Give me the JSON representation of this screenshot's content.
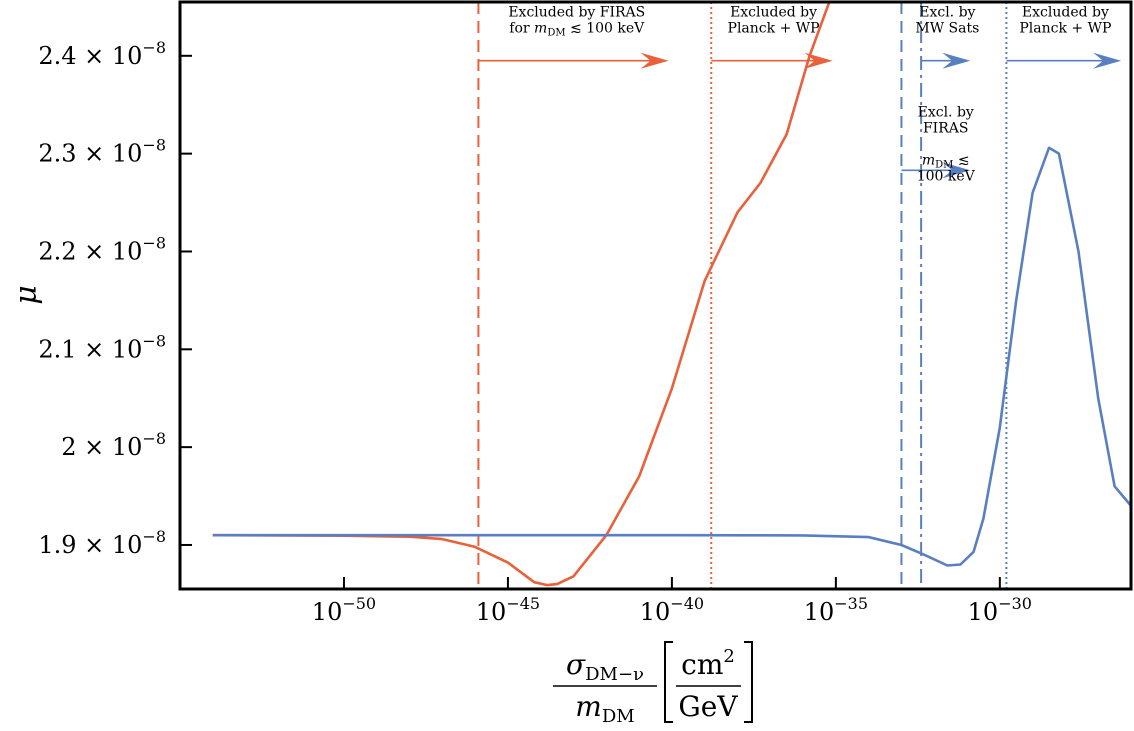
{
  "chart_data": {
    "type": "line",
    "x_scale": "log",
    "xlim_exponent": [
      -55,
      -26
    ],
    "ylim": [
      1.855e-08,
      2.455e-08
    ],
    "grid": false,
    "ylabel": "μ",
    "xlabel": {
      "numerator": "σ",
      "numerator_sub": "DM−ν",
      "denominator": "m",
      "denominator_sub": "DM",
      "unit_numerator": "cm",
      "unit_numerator_sup": "2",
      "unit_denominator": "GeV"
    },
    "x_ticks": [
      {
        "exponent": -50,
        "base": "10",
        "sup": "−50"
      },
      {
        "exponent": -45,
        "base": "10",
        "sup": "−45"
      },
      {
        "exponent": -40,
        "base": "10",
        "sup": "−40"
      },
      {
        "exponent": -35,
        "base": "10",
        "sup": "−35"
      },
      {
        "exponent": -30,
        "base": "10",
        "sup": "−30"
      }
    ],
    "y_ticks": [
      {
        "value": 1.9e-08,
        "mant": "1.9 × 10",
        "sup": "−8"
      },
      {
        "value": 2e-08,
        "mant": "2 × 10",
        "sup": "−8"
      },
      {
        "value": 2.1e-08,
        "mant": "2.1 × 10",
        "sup": "−8"
      },
      {
        "value": 2.2e-08,
        "mant": "2.2 × 10",
        "sup": "−8"
      },
      {
        "value": 2.3e-08,
        "mant": "2.3 × 10",
        "sup": "−8"
      },
      {
        "value": 2.4e-08,
        "mant": "2.4 × 10",
        "sup": "−8"
      }
    ],
    "series": [
      {
        "color": "#e8613a",
        "points": [
          [
            -54,
            1.91e-08
          ],
          [
            -52,
            1.9098e-08
          ],
          [
            -50,
            1.9095e-08
          ],
          [
            -48,
            1.9085e-08
          ],
          [
            -47,
            1.906e-08
          ],
          [
            -46,
            1.898e-08
          ],
          [
            -45,
            1.882e-08
          ],
          [
            -44.2,
            1.862e-08
          ],
          [
            -43.8,
            1.859e-08
          ],
          [
            -43.5,
            1.86e-08
          ],
          [
            -43,
            1.868e-08
          ],
          [
            -42,
            1.91e-08
          ],
          [
            -41,
            1.97e-08
          ],
          [
            -40,
            2.06e-08
          ],
          [
            -39,
            2.17e-08
          ],
          [
            -38,
            2.24e-08
          ],
          [
            -37.3,
            2.27e-08
          ],
          [
            -36.5,
            2.32e-08
          ],
          [
            -35.8,
            2.4e-08
          ],
          [
            -35.2,
            2.455e-08
          ]
        ]
      },
      {
        "color": "#5a7fc0",
        "points": [
          [
            -54,
            1.91e-08
          ],
          [
            -50,
            1.91e-08
          ],
          [
            -45,
            1.91e-08
          ],
          [
            -40,
            1.91e-08
          ],
          [
            -36,
            1.9098e-08
          ],
          [
            -34,
            1.908e-08
          ],
          [
            -33,
            1.9e-08
          ],
          [
            -32.3,
            1.89e-08
          ],
          [
            -31.6,
            1.879e-08
          ],
          [
            -31.2,
            1.88e-08
          ],
          [
            -30.8,
            1.893e-08
          ],
          [
            -30.5,
            1.927e-08
          ],
          [
            -30,
            2.02e-08
          ],
          [
            -29.5,
            2.15e-08
          ],
          [
            -29,
            2.26e-08
          ],
          [
            -28.5,
            2.306e-08
          ],
          [
            -28.2,
            2.3e-08
          ],
          [
            -27.6,
            2.2e-08
          ],
          [
            -27,
            2.05e-08
          ],
          [
            -26.5,
            1.96e-08
          ],
          [
            -26,
            1.94e-08
          ]
        ]
      }
    ],
    "vlines": [
      {
        "exponent": -45.9,
        "color": "#e8613a",
        "style": "dashed"
      },
      {
        "exponent": -38.8,
        "color": "#e8613a",
        "style": "dotted"
      },
      {
        "exponent": -33,
        "color": "#5a7fc0",
        "style": "dashed"
      },
      {
        "exponent": -32.4,
        "color": "#5a7fc0",
        "style": "dashdot"
      },
      {
        "exponent": -29.8,
        "color": "#5a7fc0",
        "style": "dotted"
      }
    ],
    "annotations": [
      {
        "lines": [
          "Excluded by FIRAS",
          "for m_DM ≲ 100 keV"
        ],
        "color": "#e8613a",
        "arrow_from": -45.9,
        "arrow_to": -40.1,
        "arrow_y": 2.395e-08,
        "text_x": -42.9,
        "text_y": 2.44e-08
      },
      {
        "lines": [
          "Excluded by",
          "Planck + WP"
        ],
        "color": "#e8613a",
        "arrow_from": -38.8,
        "arrow_to": -35.1,
        "arrow_y": 2.395e-08,
        "text_x": -36.9,
        "text_y": 2.44e-08
      },
      {
        "lines": [
          "Excl. by",
          "MW Sats"
        ],
        "color": "#5a7fc0",
        "arrow_from": -32.4,
        "arrow_to": -30.9,
        "arrow_y": 2.395e-08,
        "text_x": -31.6,
        "text_y": 2.44e-08
      },
      {
        "lines": [
          "Excluded by",
          "Planck + WP"
        ],
        "color": "#5a7fc0",
        "arrow_from": -29.8,
        "arrow_to": -26.3,
        "arrow_y": 2.395e-08,
        "text_x": -28.0,
        "text_y": 2.44e-08
      },
      {
        "lines": [
          "Excl. by",
          "FIRAS",
          "",
          "m_DM ≲",
          "100 keV"
        ],
        "color": "#5a7fc0",
        "arrow_from": -33,
        "arrow_to": -30.9,
        "arrow_y": 2.283e-08,
        "text_x": -31.65,
        "text_y": 2.338e-08
      }
    ]
  }
}
